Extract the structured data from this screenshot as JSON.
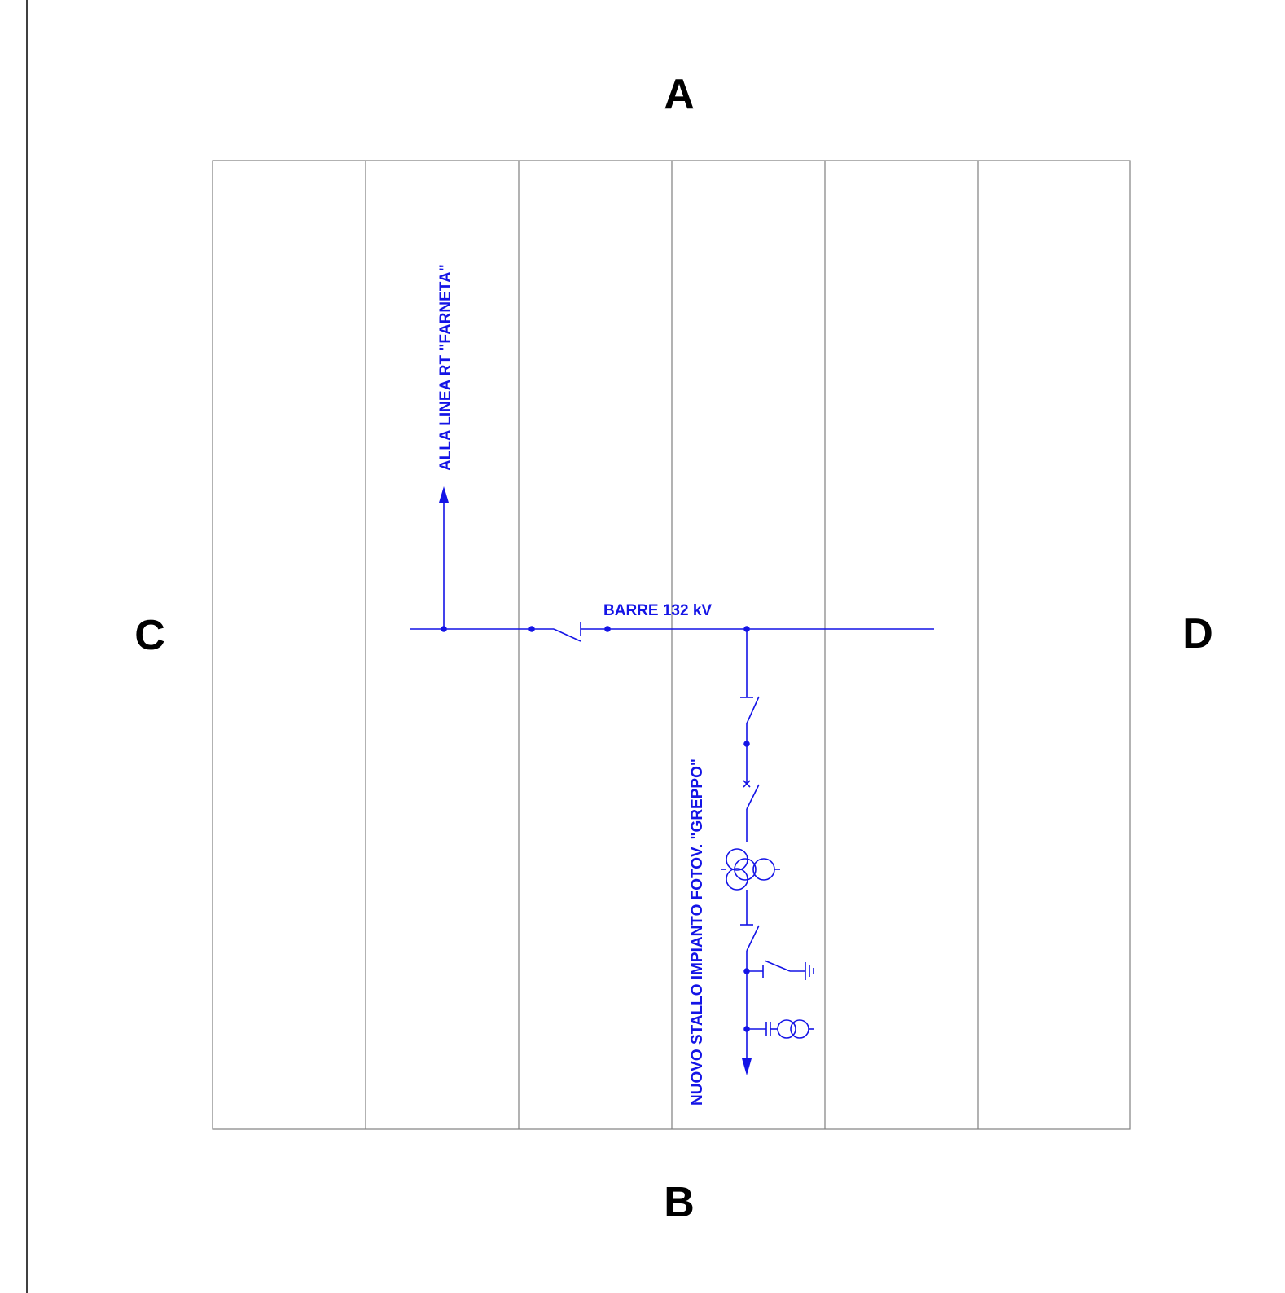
{
  "orientation_labels": {
    "top": "A",
    "bottom": "B",
    "left": "C",
    "right": "D"
  },
  "busbar_label": "BARRE 132 kV",
  "line_label": "ALLA LINEA RT \"FARNETA\"",
  "bay_label": "NUOVO STALLO IMPIANTO FOTOV. \"GREPPO\"",
  "colors": {
    "wiring": "#1414e6",
    "grid": "#808080",
    "labels": "#000000"
  }
}
